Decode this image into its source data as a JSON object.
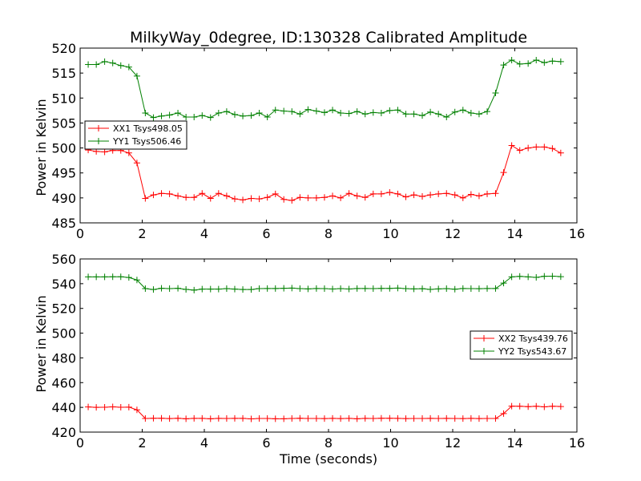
{
  "chart_data": [
    {
      "type": "line",
      "title": "MilkyWay_0degree, ID:130328 Calibrated Amplitude",
      "xlabel": "",
      "ylabel": "Power in Kelvin",
      "xlim": [
        0,
        16
      ],
      "ylim": [
        485,
        520
      ],
      "xticks": [
        0,
        2,
        4,
        6,
        8,
        10,
        12,
        14,
        16
      ],
      "yticks": [
        485,
        490,
        495,
        500,
        505,
        510,
        515,
        520
      ],
      "grid": false,
      "legend_position": "center-left",
      "series": [
        {
          "name": "XX1 Tsys498.05",
          "color": "#ff0000",
          "x": [
            0.26,
            0.52,
            0.79,
            1.05,
            1.31,
            1.57,
            1.83,
            2.1,
            2.36,
            2.62,
            2.88,
            3.15,
            3.41,
            3.67,
            3.93,
            4.2,
            4.46,
            4.72,
            4.98,
            5.24,
            5.51,
            5.77,
            6.03,
            6.29,
            6.56,
            6.82,
            7.08,
            7.34,
            7.61,
            7.87,
            8.13,
            8.39,
            8.66,
            8.92,
            9.18,
            9.44,
            9.7,
            9.97,
            10.23,
            10.49,
            10.75,
            11.02,
            11.28,
            11.54,
            11.8,
            12.07,
            12.33,
            12.59,
            12.85,
            13.11,
            13.38,
            13.64,
            13.9,
            14.16,
            14.43,
            14.69,
            14.95,
            15.21,
            15.48
          ],
          "y": [
            499.6,
            499.3,
            499.2,
            499.5,
            499.5,
            499.0,
            497.0,
            489.9,
            490.6,
            490.9,
            490.8,
            490.4,
            490.1,
            490.1,
            490.9,
            489.9,
            490.9,
            490.4,
            489.8,
            489.6,
            489.9,
            489.8,
            490.1,
            490.8,
            489.7,
            489.5,
            490.1,
            490.0,
            490.0,
            490.1,
            490.4,
            490.0,
            490.9,
            490.4,
            490.1,
            490.8,
            490.8,
            491.1,
            490.8,
            490.2,
            490.6,
            490.3,
            490.6,
            490.8,
            490.9,
            490.6,
            490.0,
            490.7,
            490.4,
            490.8,
            490.9,
            495.1,
            500.5,
            499.5,
            500.0,
            500.2,
            500.2,
            499.9,
            499.0
          ]
        },
        {
          "name": "YY1 Tsys506.46",
          "color": "#008000",
          "x": [
            0.26,
            0.52,
            0.79,
            1.05,
            1.31,
            1.57,
            1.83,
            2.1,
            2.36,
            2.62,
            2.88,
            3.15,
            3.41,
            3.67,
            3.93,
            4.2,
            4.46,
            4.72,
            4.98,
            5.24,
            5.51,
            5.77,
            6.03,
            6.29,
            6.56,
            6.82,
            7.08,
            7.34,
            7.61,
            7.87,
            8.13,
            8.39,
            8.66,
            8.92,
            9.18,
            9.44,
            9.7,
            9.97,
            10.23,
            10.49,
            10.75,
            11.02,
            11.28,
            11.54,
            11.8,
            12.07,
            12.33,
            12.59,
            12.85,
            13.11,
            13.38,
            13.64,
            13.9,
            14.16,
            14.43,
            14.69,
            14.95,
            15.21,
            15.48
          ],
          "y": [
            516.7,
            516.7,
            517.3,
            517.0,
            516.5,
            516.2,
            514.4,
            507.0,
            506.1,
            506.4,
            506.6,
            507.0,
            506.2,
            506.2,
            506.5,
            506.1,
            507.0,
            507.3,
            506.7,
            506.4,
            506.5,
            507.0,
            506.2,
            507.6,
            507.4,
            507.3,
            506.8,
            507.7,
            507.4,
            507.1,
            507.6,
            507.0,
            506.9,
            507.3,
            506.8,
            507.1,
            507.0,
            507.5,
            507.6,
            506.8,
            506.8,
            506.5,
            507.2,
            506.8,
            506.2,
            507.2,
            507.6,
            507.0,
            506.8,
            507.3,
            511.0,
            516.6,
            517.6,
            516.8,
            516.9,
            517.6,
            517.1,
            517.4,
            517.3
          ]
        }
      ]
    },
    {
      "type": "line",
      "title": "",
      "xlabel": "Time (seconds)",
      "ylabel": "Power in Kelvin",
      "xlim": [
        0,
        16
      ],
      "ylim": [
        420,
        560
      ],
      "xticks": [
        0,
        2,
        4,
        6,
        8,
        10,
        12,
        14,
        16
      ],
      "yticks": [
        420,
        440,
        460,
        480,
        500,
        520,
        540,
        560
      ],
      "grid": false,
      "legend_position": "center-right",
      "series": [
        {
          "name": "XX2 Tsys439.76",
          "color": "#ff0000",
          "x": [
            0.26,
            0.52,
            0.79,
            1.05,
            1.31,
            1.57,
            1.83,
            2.1,
            2.36,
            2.62,
            2.88,
            3.15,
            3.41,
            3.67,
            3.93,
            4.2,
            4.46,
            4.72,
            4.98,
            5.24,
            5.51,
            5.77,
            6.03,
            6.29,
            6.56,
            6.82,
            7.08,
            7.34,
            7.61,
            7.87,
            8.13,
            8.39,
            8.66,
            8.92,
            9.18,
            9.44,
            9.7,
            9.97,
            10.23,
            10.49,
            10.75,
            11.02,
            11.28,
            11.54,
            11.8,
            12.07,
            12.33,
            12.59,
            12.85,
            13.11,
            13.38,
            13.64,
            13.9,
            14.16,
            14.43,
            14.69,
            14.95,
            15.21,
            15.48
          ],
          "y": [
            440.3,
            440.0,
            440.1,
            440.4,
            440.1,
            440.2,
            438.0,
            431.0,
            431.2,
            431.2,
            430.9,
            431.2,
            430.8,
            431.1,
            431.1,
            430.8,
            431.1,
            431.0,
            431.1,
            431.1,
            430.7,
            431.0,
            431.0,
            430.8,
            430.8,
            431.0,
            431.2,
            431.0,
            431.0,
            430.9,
            431.1,
            430.9,
            431.1,
            430.8,
            431.1,
            431.0,
            431.2,
            431.2,
            431.1,
            430.9,
            431.0,
            431.0,
            431.1,
            431.0,
            431.1,
            431.0,
            430.9,
            431.1,
            430.9,
            431.0,
            431.0,
            435.0,
            441.0,
            440.9,
            440.6,
            440.9,
            440.4,
            440.9,
            440.7
          ]
        },
        {
          "name": "YY2 Tsys543.67",
          "color": "#008000",
          "x": [
            0.26,
            0.52,
            0.79,
            1.05,
            1.31,
            1.57,
            1.83,
            2.1,
            2.36,
            2.62,
            2.88,
            3.15,
            3.41,
            3.67,
            3.93,
            4.2,
            4.46,
            4.72,
            4.98,
            5.24,
            5.51,
            5.77,
            6.03,
            6.29,
            6.56,
            6.82,
            7.08,
            7.34,
            7.61,
            7.87,
            8.13,
            8.39,
            8.66,
            8.92,
            9.18,
            9.44,
            9.7,
            9.97,
            10.23,
            10.49,
            10.75,
            11.02,
            11.28,
            11.54,
            11.8,
            12.07,
            12.33,
            12.59,
            12.85,
            13.11,
            13.38,
            13.64,
            13.9,
            14.16,
            14.43,
            14.69,
            14.95,
            15.21,
            15.48
          ],
          "y": [
            545.5,
            545.5,
            545.5,
            545.6,
            545.6,
            545.0,
            543.0,
            536.0,
            535.3,
            536.3,
            536.0,
            536.3,
            535.4,
            534.8,
            535.6,
            535.6,
            535.6,
            536.0,
            535.6,
            535.3,
            535.3,
            536.0,
            536.1,
            536.1,
            536.3,
            536.4,
            536.0,
            535.8,
            536.1,
            536.0,
            535.7,
            536.0,
            535.7,
            536.1,
            536.1,
            536.0,
            536.2,
            536.2,
            536.4,
            536.0,
            535.8,
            535.9,
            535.4,
            535.8,
            536.0,
            535.5,
            536.1,
            536.0,
            535.9,
            536.1,
            536.1,
            540.5,
            545.5,
            545.9,
            545.5,
            545.1,
            546.0,
            546.1,
            545.7
          ]
        }
      ]
    }
  ]
}
